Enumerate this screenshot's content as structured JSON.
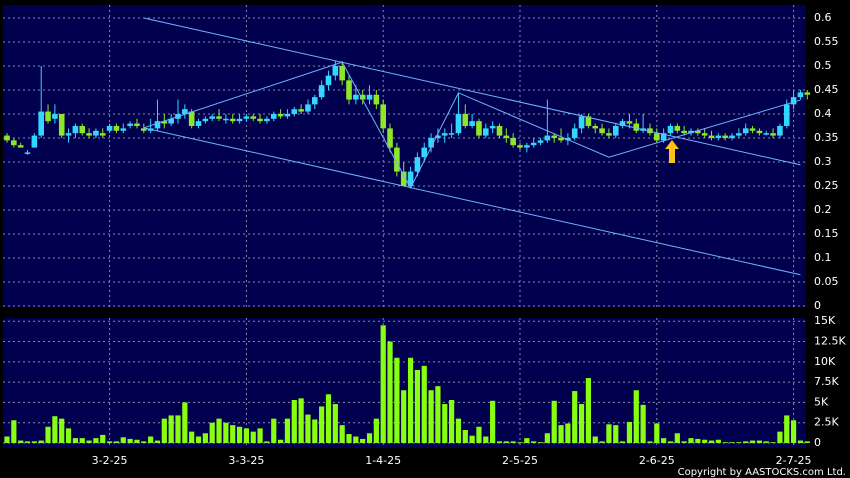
{
  "chart_data": {
    "type": "candlestick",
    "up_color": "#33d6ff",
    "down_color": "#8ee62a",
    "volume_color": "#88ff11",
    "trendline_color": "#6fb4ff",
    "categories": [
      null,
      null,
      null,
      null,
      null,
      null,
      null,
      null,
      null,
      null,
      null,
      null,
      null,
      null,
      null,
      "3-2-25",
      null,
      null,
      null,
      null,
      null,
      null,
      null,
      null,
      null,
      null,
      null,
      null,
      null,
      null,
      null,
      null,
      null,
      null,
      null,
      "3-3-25",
      null,
      null,
      null,
      null,
      null,
      null,
      null,
      null,
      null,
      null,
      null,
      null,
      null,
      null,
      null,
      null,
      null,
      null,
      null,
      "1-4-25",
      null,
      null,
      null,
      null,
      null,
      null,
      null,
      null,
      null,
      null,
      null,
      null,
      null,
      null,
      null,
      null,
      null,
      null,
      null,
      "2-5-25",
      null,
      null,
      null,
      null,
      null,
      null,
      null,
      null,
      null,
      null,
      null,
      null,
      null,
      null,
      null,
      null,
      null,
      null,
      null,
      "2-6-25",
      null,
      null,
      null,
      null,
      null,
      null,
      null,
      null,
      null,
      null,
      null,
      null,
      null,
      null,
      null,
      null,
      null,
      null,
      null,
      "2-7-25",
      null,
      null
    ],
    "open": [
      0.355,
      0.345,
      0.335,
      0.32,
      0.33,
      0.355,
      0.405,
      0.39,
      0.4,
      0.355,
      0.36,
      0.375,
      0.36,
      0.355,
      0.36,
      0.365,
      0.375,
      0.365,
      0.375,
      0.38,
      0.37,
      0.365,
      0.37,
      0.385,
      0.38,
      0.39,
      0.4,
      0.405,
      0.375,
      0.385,
      0.39,
      0.395,
      0.39,
      0.39,
      0.385,
      0.39,
      0.395,
      0.39,
      0.385,
      0.39,
      0.4,
      0.395,
      0.4,
      0.41,
      0.405,
      0.42,
      0.435,
      0.46,
      0.48,
      0.5,
      0.47,
      0.43,
      0.44,
      0.43,
      0.44,
      0.42,
      0.37,
      0.33,
      0.28,
      0.25,
      0.28,
      0.31,
      0.33,
      0.35,
      0.355,
      0.36,
      0.36,
      0.4,
      0.375,
      0.385,
      0.355,
      0.37,
      0.375,
      0.355,
      0.35,
      0.335,
      0.33,
      0.335,
      0.34,
      0.345,
      0.355,
      0.35,
      0.345,
      0.35,
      0.37,
      0.395,
      0.375,
      0.37,
      0.36,
      0.355,
      0.375,
      0.385,
      0.38,
      0.365,
      0.37,
      0.36,
      0.345,
      0.36,
      0.375,
      0.365,
      0.36,
      0.365,
      0.36,
      0.355,
      0.35,
      0.355,
      0.35,
      0.355,
      0.36,
      0.37,
      0.365,
      0.36,
      0.36,
      0.355,
      0.375,
      0.42,
      0.435,
      0.445
    ],
    "high": [
      0.36,
      0.35,
      0.34,
      0.325,
      0.36,
      0.5,
      0.42,
      0.42,
      0.4,
      0.37,
      0.38,
      0.38,
      0.37,
      0.37,
      0.37,
      0.38,
      0.38,
      0.38,
      0.385,
      0.39,
      0.38,
      0.39,
      0.43,
      0.4,
      0.4,
      0.43,
      0.42,
      0.41,
      0.39,
      0.395,
      0.4,
      0.41,
      0.4,
      0.4,
      0.4,
      0.4,
      0.4,
      0.4,
      0.395,
      0.405,
      0.41,
      0.41,
      0.415,
      0.42,
      0.43,
      0.44,
      0.47,
      0.49,
      0.51,
      0.51,
      0.48,
      0.46,
      0.45,
      0.46,
      0.45,
      0.43,
      0.38,
      0.34,
      0.3,
      0.29,
      0.32,
      0.34,
      0.36,
      0.37,
      0.37,
      0.38,
      0.445,
      0.42,
      0.4,
      0.39,
      0.38,
      0.385,
      0.38,
      0.37,
      0.36,
      0.34,
      0.34,
      0.35,
      0.35,
      0.43,
      0.36,
      0.37,
      0.36,
      0.38,
      0.4,
      0.4,
      0.38,
      0.38,
      0.37,
      0.38,
      0.39,
      0.4,
      0.39,
      0.4,
      0.38,
      0.37,
      0.37,
      0.38,
      0.38,
      0.375,
      0.37,
      0.37,
      0.37,
      0.365,
      0.36,
      0.36,
      0.36,
      0.37,
      0.38,
      0.375,
      0.37,
      0.365,
      0.37,
      0.38,
      0.43,
      0.45,
      0.45,
      0.45
    ],
    "low": [
      0.34,
      0.33,
      0.33,
      0.315,
      0.33,
      0.35,
      0.38,
      0.38,
      0.35,
      0.34,
      0.35,
      0.355,
      0.35,
      0.35,
      0.35,
      0.36,
      0.36,
      0.36,
      0.37,
      0.37,
      0.36,
      0.36,
      0.365,
      0.37,
      0.375,
      0.38,
      0.39,
      0.37,
      0.37,
      0.38,
      0.385,
      0.385,
      0.38,
      0.38,
      0.38,
      0.385,
      0.385,
      0.38,
      0.38,
      0.385,
      0.39,
      0.39,
      0.395,
      0.4,
      0.4,
      0.41,
      0.43,
      0.45,
      0.47,
      0.46,
      0.42,
      0.42,
      0.42,
      0.42,
      0.41,
      0.36,
      0.32,
      0.27,
      0.25,
      0.245,
      0.27,
      0.3,
      0.32,
      0.34,
      0.34,
      0.35,
      0.355,
      0.37,
      0.37,
      0.35,
      0.35,
      0.36,
      0.35,
      0.34,
      0.33,
      0.325,
      0.32,
      0.33,
      0.335,
      0.34,
      0.34,
      0.34,
      0.335,
      0.345,
      0.36,
      0.37,
      0.36,
      0.355,
      0.35,
      0.35,
      0.37,
      0.37,
      0.36,
      0.36,
      0.355,
      0.34,
      0.34,
      0.355,
      0.36,
      0.355,
      0.355,
      0.355,
      0.35,
      0.345,
      0.345,
      0.345,
      0.345,
      0.35,
      0.355,
      0.36,
      0.355,
      0.355,
      0.35,
      0.35,
      0.37,
      0.41,
      0.43,
      0.43
    ],
    "close": [
      0.345,
      0.335,
      0.33,
      0.32,
      0.355,
      0.405,
      0.385,
      0.4,
      0.355,
      0.36,
      0.375,
      0.36,
      0.355,
      0.365,
      0.355,
      0.375,
      0.365,
      0.37,
      0.38,
      0.375,
      0.365,
      0.37,
      0.385,
      0.38,
      0.39,
      0.4,
      0.41,
      0.375,
      0.385,
      0.39,
      0.395,
      0.39,
      0.39,
      0.385,
      0.39,
      0.395,
      0.39,
      0.385,
      0.39,
      0.4,
      0.395,
      0.4,
      0.41,
      0.405,
      0.42,
      0.435,
      0.46,
      0.48,
      0.5,
      0.47,
      0.43,
      0.44,
      0.43,
      0.44,
      0.42,
      0.37,
      0.33,
      0.28,
      0.25,
      0.28,
      0.31,
      0.33,
      0.35,
      0.355,
      0.36,
      0.36,
      0.4,
      0.375,
      0.385,
      0.355,
      0.37,
      0.375,
      0.355,
      0.35,
      0.335,
      0.33,
      0.335,
      0.34,
      0.345,
      0.355,
      0.35,
      0.345,
      0.35,
      0.37,
      0.395,
      0.375,
      0.37,
      0.36,
      0.355,
      0.375,
      0.385,
      0.38,
      0.365,
      0.37,
      0.36,
      0.345,
      0.36,
      0.375,
      0.365,
      0.36,
      0.365,
      0.36,
      0.355,
      0.35,
      0.355,
      0.35,
      0.355,
      0.36,
      0.37,
      0.365,
      0.36,
      0.36,
      0.355,
      0.375,
      0.42,
      0.435,
      0.445,
      0.44
    ],
    "volume": [
      800,
      2800,
      300,
      200,
      200,
      300,
      2000,
      3300,
      3000,
      1800,
      600,
      600,
      300,
      600,
      1000,
      200,
      200,
      700,
      500,
      400,
      200,
      800,
      300,
      3000,
      3400,
      3400,
      5000,
      1400,
      800,
      1200,
      2500,
      3000,
      2500,
      2200,
      2000,
      1800,
      1400,
      1800,
      200,
      3000,
      400,
      3000,
      5300,
      5500,
      3500,
      2900,
      4500,
      6000,
      4800,
      2200,
      1100,
      800,
      500,
      1200,
      3000,
      14500,
      12500,
      10500,
      6500,
      10500,
      9000,
      9500,
      6500,
      7000,
      4800,
      5300,
      3000,
      1600,
      900,
      2000,
      800,
      5200,
      200,
      200,
      200,
      100,
      600,
      200,
      100,
      1200,
      5200,
      2200,
      2400,
      6400,
      4800,
      8000,
      800,
      200,
      2300,
      2200,
      200,
      2600,
      6500,
      4700,
      200,
      2400,
      600,
      200,
      1200,
      200,
      600,
      500,
      400,
      300,
      400,
      100,
      100,
      100,
      200,
      300,
      300,
      200,
      100,
      1400,
      3400,
      2800,
      300,
      200
    ],
    "ylim": [
      0,
      0.627
    ],
    "yticks": [
      0,
      0.05,
      0.1,
      0.15,
      0.2,
      0.25,
      0.3,
      0.35,
      0.4,
      0.45,
      0.5,
      0.55,
      0.6
    ],
    "volume_ylim": [
      0,
      15400
    ],
    "volume_yticks": [
      0,
      {
        "value": 2500,
        "label": "2.5K"
      },
      {
        "value": 5000,
        "label": "5K"
      },
      {
        "value": 7500,
        "label": "7.5K"
      },
      {
        "value": 10000,
        "label": "10K"
      },
      {
        "value": 12500,
        "label": "12.5K"
      },
      {
        "value": 15000,
        "label": "15K"
      }
    ],
    "grid": true,
    "trendlines": [
      {
        "x": [
          20,
          116
        ],
        "y": [
          0.6,
          0.294
        ]
      },
      {
        "x": [
          20,
          116
        ],
        "y": [
          0.371,
          0.065
        ]
      },
      {
        "x": [
          20,
          49,
          59,
          66,
          88,
          116
        ],
        "y": [
          0.371,
          0.508,
          0.246,
          0.444,
          0.31,
          0.429
        ]
      }
    ],
    "copyright": "Copyright by AASTOCKS.com Ltd."
  }
}
